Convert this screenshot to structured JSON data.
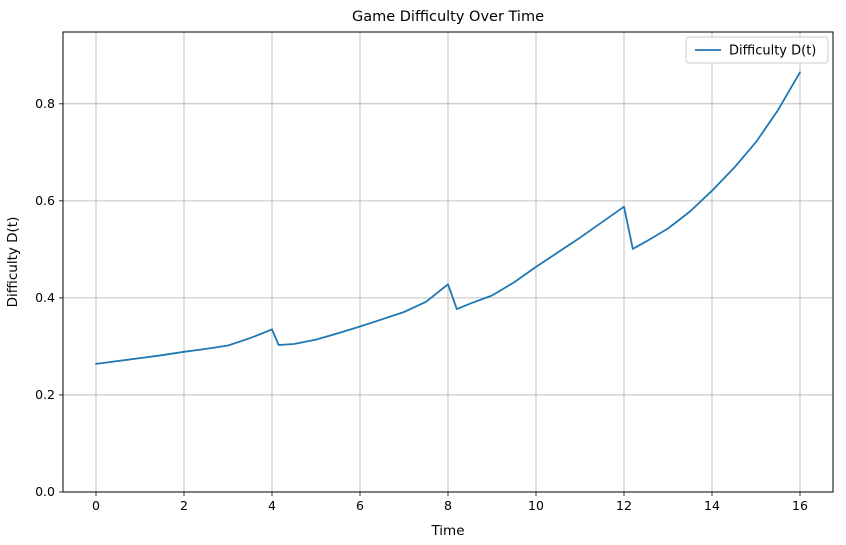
{
  "figure": {
    "title": "Game Difficulty Over Time"
  },
  "colors": {
    "line": "#1f77b4",
    "grid": "#b0b0b0",
    "spine": "#000000",
    "legend_border": "#cccccc",
    "background": "#ffffff"
  },
  "chart_data": {
    "type": "line",
    "title": "Game Difficulty Over Time",
    "xlabel": "Time",
    "ylabel": "Difficulty D(t)",
    "grid": true,
    "legend_position": "upper right",
    "xlim": [
      -0.75,
      16.75
    ],
    "ylim": [
      0,
      0.948
    ],
    "xticks": [
      0,
      2,
      4,
      6,
      8,
      10,
      12,
      14,
      16
    ],
    "xtick_labels": [
      "0",
      "2",
      "4",
      "6",
      "8",
      "10",
      "12",
      "14",
      "16"
    ],
    "yticks": [
      0.0,
      0.2,
      0.4,
      0.6,
      0.8
    ],
    "ytick_labels": [
      "0.0",
      "0.2",
      "0.4",
      "0.6",
      "0.8"
    ],
    "series": [
      {
        "name": "Difficulty D(t)",
        "color": "#1f77b4",
        "points": [
          [
            0,
            0.264
          ],
          [
            0.5,
            0.27
          ],
          [
            1,
            0.276
          ],
          [
            1.5,
            0.282
          ],
          [
            2,
            0.289
          ],
          [
            2.5,
            0.295
          ],
          [
            3,
            0.302
          ],
          [
            3.5,
            0.317
          ],
          [
            4,
            0.335
          ],
          [
            4.15,
            0.303
          ],
          [
            4.5,
            0.305
          ],
          [
            5,
            0.314
          ],
          [
            5.5,
            0.327
          ],
          [
            6,
            0.341
          ],
          [
            6.5,
            0.356
          ],
          [
            7,
            0.371
          ],
          [
            7.5,
            0.392
          ],
          [
            8,
            0.428
          ],
          [
            8.2,
            0.377
          ],
          [
            8.5,
            0.388
          ],
          [
            9,
            0.405
          ],
          [
            9.5,
            0.432
          ],
          [
            10,
            0.464
          ],
          [
            10.5,
            0.494
          ],
          [
            11,
            0.524
          ],
          [
            11.5,
            0.556
          ],
          [
            12,
            0.588
          ],
          [
            12.2,
            0.501
          ],
          [
            12.5,
            0.516
          ],
          [
            13,
            0.543
          ],
          [
            13.5,
            0.578
          ],
          [
            14,
            0.621
          ],
          [
            14.5,
            0.668
          ],
          [
            15,
            0.721
          ],
          [
            15.5,
            0.787
          ],
          [
            16,
            0.865
          ]
        ]
      }
    ]
  }
}
